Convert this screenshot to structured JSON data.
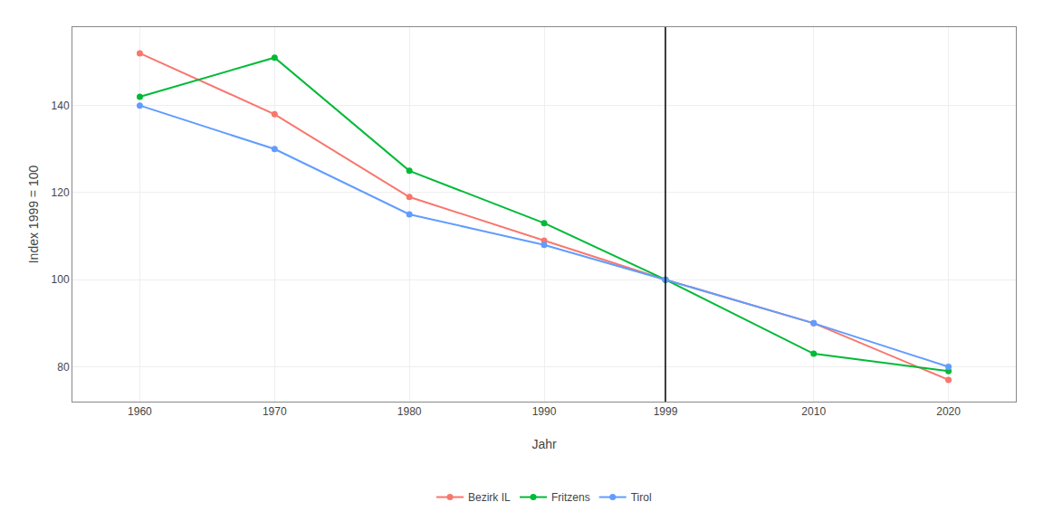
{
  "chart_data": {
    "type": "line",
    "xlabel": "Jahr",
    "ylabel": "Index 1999 = 100",
    "x": [
      1960,
      1970,
      1980,
      1990,
      1999,
      2010,
      2020
    ],
    "series": [
      {
        "name": "Bezirk IL",
        "color": "#F8766D",
        "values": [
          152,
          138,
          119,
          109,
          100,
          90,
          77
        ]
      },
      {
        "name": "Fritzens",
        "color": "#00BA38",
        "values": [
          142,
          151,
          125,
          113,
          100,
          83,
          79
        ]
      },
      {
        "name": "Tirol",
        "color": "#619CFF",
        "values": [
          140,
          130,
          115,
          108,
          100,
          90,
          80
        ]
      }
    ],
    "xlim": [
      1955,
      2025
    ],
    "xticks": [
      1960,
      1970,
      1980,
      1990,
      1999,
      2010,
      2020
    ],
    "ylim": [
      72,
      158
    ],
    "yticks": [
      80,
      100,
      120,
      140
    ],
    "grid": true,
    "legend": "bottom",
    "marker": "circle",
    "vline": 1999
  }
}
